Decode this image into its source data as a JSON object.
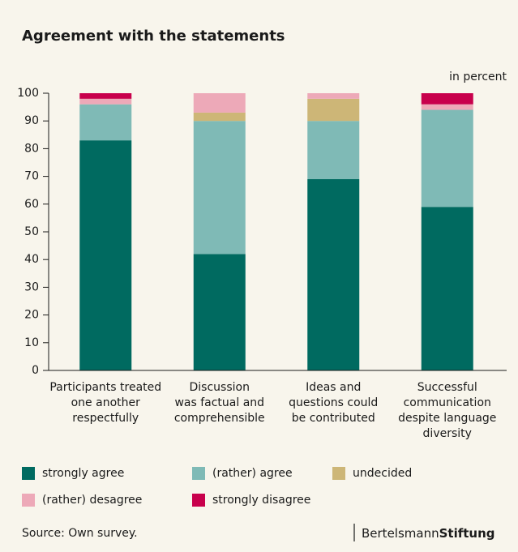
{
  "chart_data": {
    "type": "stacked_bar",
    "title": "Agreement with the statements",
    "unit_label": "in percent",
    "categories": [
      "Participants treated\none another\nrespectfully",
      "Discussion\nwas factual and\ncomprehensible",
      "Ideas and\nquestions could\nbe contributed",
      "Successful\ncommunication\ndespite language\ndiversity"
    ],
    "series": [
      {
        "name": "strongly agree",
        "color": "#006a60",
        "values": [
          83,
          42,
          69,
          59
        ]
      },
      {
        "name": "(rather) agree",
        "color": "#7fbab6",
        "values": [
          13,
          48,
          21,
          35
        ]
      },
      {
        "name": "undecided",
        "color": "#cdb677",
        "values": [
          0,
          3,
          8,
          0
        ]
      },
      {
        "name": "(rather) desagree",
        "color": "#eda9b8",
        "values": [
          2,
          7,
          2,
          2
        ]
      },
      {
        "name": "strongly disagree",
        "color": "#c8004c",
        "values": [
          2,
          0,
          0,
          4
        ]
      }
    ],
    "ylim": [
      0,
      100
    ],
    "yticks": [
      0,
      10,
      20,
      30,
      40,
      50,
      60,
      70,
      80,
      90,
      100
    ],
    "source": "Source: Own survey.",
    "logo": {
      "light": "Bertelsmann",
      "bold": "Stiftung"
    }
  }
}
